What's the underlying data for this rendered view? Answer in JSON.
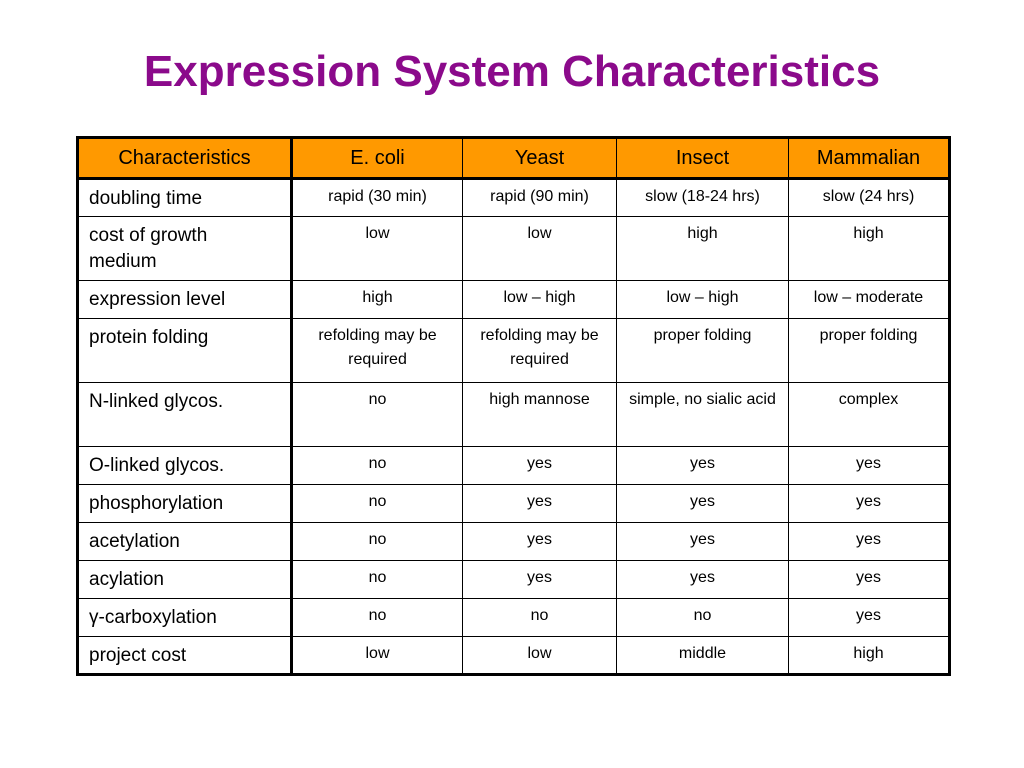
{
  "title": "Expression System Characteristics",
  "table": {
    "header": [
      "Characteristics",
      "E. coli",
      "Yeast",
      "Insect",
      "Mammalian"
    ],
    "rows": [
      {
        "label": "doubling time",
        "values": [
          "rapid (30 min)",
          "rapid (90 min)",
          "slow (18-24 hrs)",
          "slow (24 hrs)"
        ],
        "tall": false
      },
      {
        "label": "cost of growth medium",
        "values": [
          "low",
          "low",
          "high",
          "high"
        ],
        "tall": true
      },
      {
        "label": "expression level",
        "values": [
          "high",
          "low – high",
          "low – high",
          "low – moderate"
        ],
        "tall": false
      },
      {
        "label": "protein folding",
        "values": [
          "refolding may be required",
          "refolding may be required",
          "proper folding",
          "proper folding"
        ],
        "tall": true
      },
      {
        "label": "N-linked glycos.",
        "values": [
          "no",
          "high mannose",
          "simple, no sialic acid",
          "complex"
        ],
        "tall": true
      },
      {
        "label": "O-linked glycos.",
        "values": [
          "no",
          "yes",
          "yes",
          "yes"
        ],
        "tall": false
      },
      {
        "label": "phosphorylation",
        "values": [
          "no",
          "yes",
          "yes",
          "yes"
        ],
        "tall": false
      },
      {
        "label": "acetylation",
        "values": [
          "no",
          "yes",
          "yes",
          "yes"
        ],
        "tall": false
      },
      {
        "label": "acylation",
        "values": [
          "no",
          "yes",
          "yes",
          "yes"
        ],
        "tall": false
      },
      {
        "label": "γ-carboxylation",
        "values": [
          "no",
          "no",
          "no",
          "yes"
        ],
        "tall": false
      },
      {
        "label": "project cost",
        "values": [
          "low",
          "low",
          "middle",
          "high"
        ],
        "tall": false
      }
    ]
  }
}
